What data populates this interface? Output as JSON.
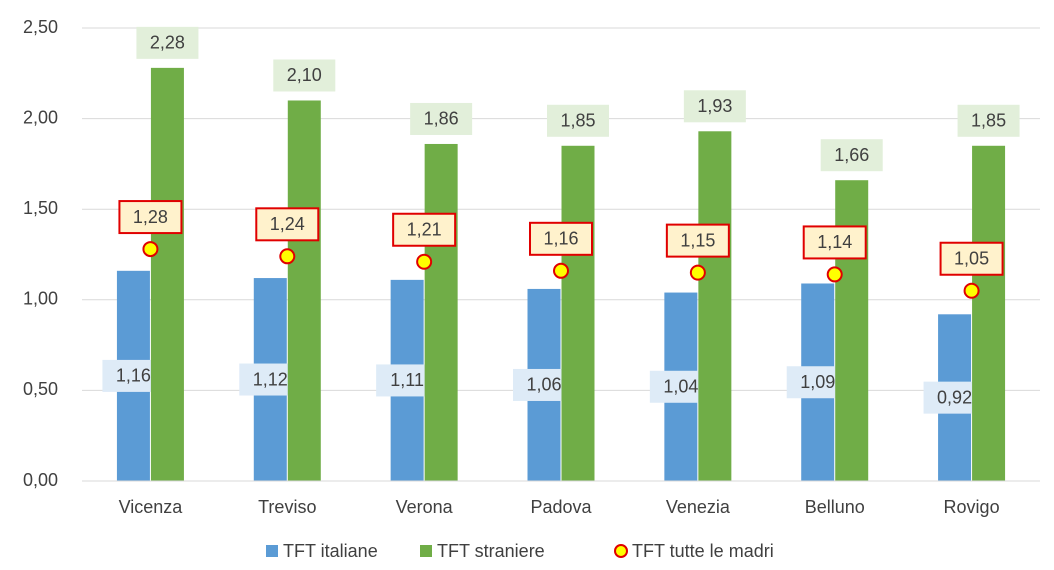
{
  "chart_data": {
    "type": "bar",
    "categories": [
      "Vicenza",
      "Treviso",
      "Verona",
      "Padova",
      "Venezia",
      "Belluno",
      "Rovigo"
    ],
    "series": [
      {
        "name": "TFT italiane",
        "color": "#5b9bd5",
        "values": [
          1.16,
          1.12,
          1.11,
          1.06,
          1.04,
          1.09,
          0.92
        ],
        "value_labels": [
          "1,16",
          "1,12",
          "1,11",
          "1,06",
          "1,04",
          "1,09",
          "0,92"
        ]
      },
      {
        "name": "TFT straniere",
        "color": "#70ad47",
        "values": [
          2.28,
          2.1,
          1.86,
          1.85,
          1.93,
          1.66,
          1.85
        ],
        "value_labels": [
          "2,28",
          "2,10",
          "1,86",
          "1,85",
          "1,93",
          "1,66",
          "1,85"
        ]
      },
      {
        "name": "TFT tutte le madri",
        "type": "scatter",
        "color": "#ffff00",
        "values": [
          1.28,
          1.24,
          1.21,
          1.16,
          1.15,
          1.14,
          1.05
        ],
        "value_labels": [
          "1,28",
          "1,24",
          "1,21",
          "1,16",
          "1,15",
          "1,14",
          "1,05"
        ]
      }
    ],
    "ylim": [
      0,
      2.5
    ],
    "yticks": [
      {
        "value": 0,
        "label": "0,00"
      },
      {
        "value": 0.5,
        "label": "0,50"
      },
      {
        "value": 1,
        "label": "1,00"
      },
      {
        "value": 1.5,
        "label": "1,50"
      },
      {
        "value": 2,
        "label": "2,00"
      },
      {
        "value": 2.5,
        "label": "2,50"
      }
    ],
    "grid": true,
    "legend": "bottom"
  }
}
